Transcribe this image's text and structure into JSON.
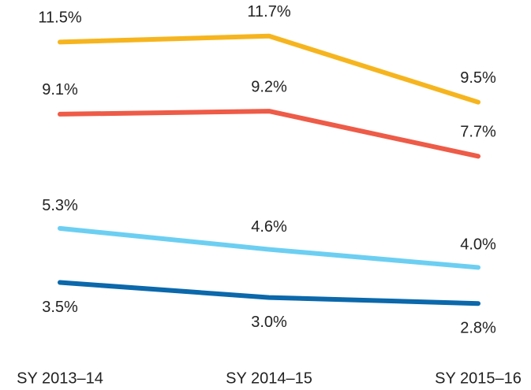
{
  "chart_data": {
    "type": "line",
    "categories": [
      "SY 2013–14",
      "SY 2014–15",
      "SY 2015–16"
    ],
    "series": [
      {
        "color": "#f6b51e",
        "values": [
          11.5,
          11.7,
          9.5
        ],
        "value_labels": [
          "11.5%",
          "11.7%",
          "9.5%"
        ]
      },
      {
        "color": "#ee5b47",
        "values": [
          9.1,
          9.2,
          7.7
        ],
        "value_labels": [
          "9.1%",
          "9.2%",
          "7.7%"
        ]
      },
      {
        "color": "#6ccff2",
        "values": [
          5.3,
          4.6,
          4.0
        ],
        "value_labels": [
          "5.3%",
          "4.6%",
          "4.0%"
        ]
      },
      {
        "color": "#0b68ab",
        "values": [
          3.5,
          3.0,
          2.8
        ],
        "value_labels": [
          "3.5%",
          "3.0%",
          "2.8%"
        ]
      }
    ],
    "ylim": [
      0,
      12.9
    ]
  }
}
